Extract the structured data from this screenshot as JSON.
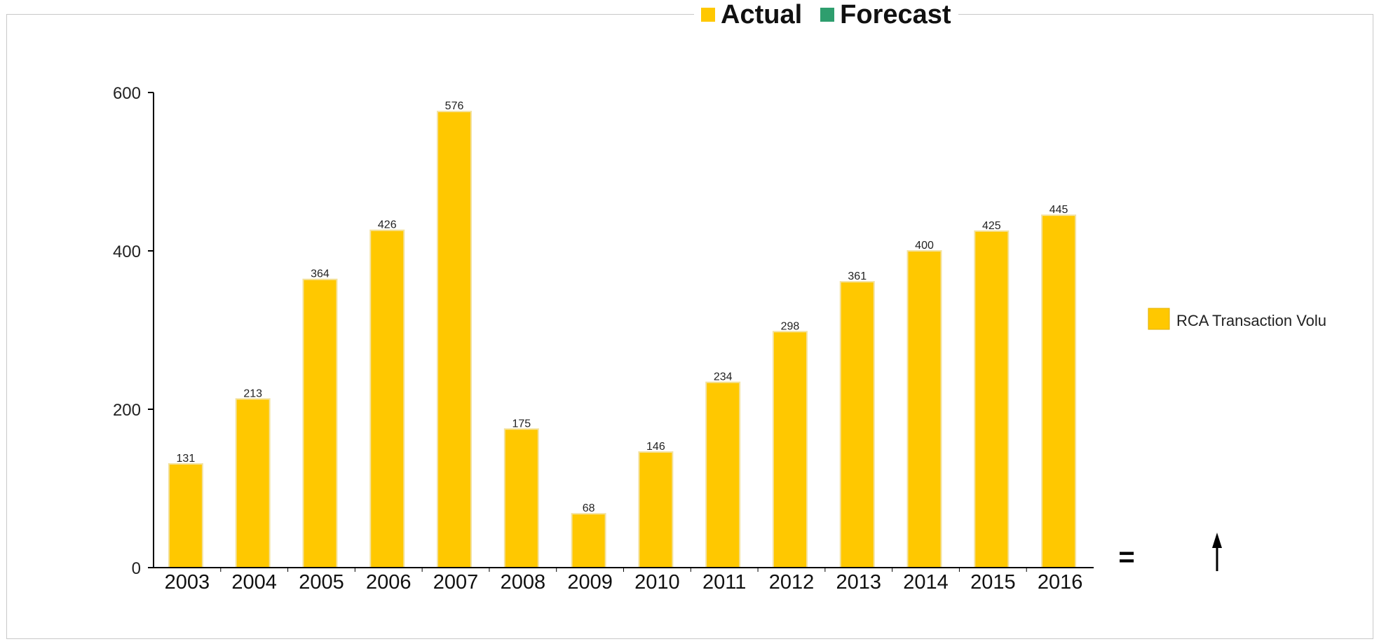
{
  "colors": {
    "actual": "#FFC800",
    "forecast": "#2E9E6E",
    "axis": "#000000",
    "frame": "#c8c8c8"
  },
  "top_legend": [
    {
      "label": "Actual",
      "color": "#FFC800"
    },
    {
      "label": "Forecast",
      "color": "#2E9E6E"
    }
  ],
  "symbols": {
    "equals": "=",
    "arrow": "up-arrow-icon"
  },
  "chart_data": {
    "type": "bar",
    "categories": [
      "2003",
      "2004",
      "2005",
      "2006",
      "2007",
      "2008",
      "2009",
      "2010",
      "2011",
      "2012",
      "2013",
      "2014",
      "2015",
      "2016"
    ],
    "series": [
      {
        "name": "RCA Transaction Volu",
        "values": [
          131,
          213,
          364,
          426,
          576,
          175,
          68,
          146,
          234,
          298,
          361,
          400,
          425,
          445
        ],
        "color": "#FFC800"
      }
    ],
    "data_labels": [
      "131",
      "213",
      "364",
      "426",
      "576",
      "175",
      "68",
      "146",
      "234",
      "298",
      "361",
      "400",
      "425",
      "445"
    ],
    "ylim": [
      0,
      600
    ],
    "yticks": [
      0,
      200,
      400,
      600
    ],
    "grid": false,
    "legend_position": "right",
    "xlabel": "",
    "ylabel": ""
  }
}
